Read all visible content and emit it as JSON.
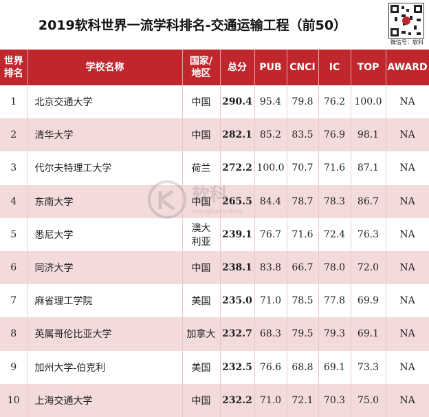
{
  "title": "2019软科世界一流学科排名-交通运输工程（前50）",
  "qr_caption": "微信号：软科",
  "watermark": {
    "text": "软科",
    "subtext": "shanghairanking"
  },
  "columns": [
    "世界\n排名",
    "学校名称",
    "国家/\n地区",
    "总分",
    "PUB",
    "CNCI",
    "IC",
    "TOP",
    "AWARD"
  ],
  "rows": [
    {
      "rank": "1",
      "name": "北京交通大学",
      "region": "中国",
      "total": "290.4",
      "pub": "95.4",
      "cnci": "79.8",
      "ic": "76.2",
      "top": "100.0",
      "award": "NA"
    },
    {
      "rank": "2",
      "name": "清华大学",
      "region": "中国",
      "total": "282.1",
      "pub": "85.2",
      "cnci": "83.5",
      "ic": "76.9",
      "top": "98.1",
      "award": "NA"
    },
    {
      "rank": "3",
      "name": "代尔夫特理工大学",
      "region": "荷兰",
      "total": "272.2",
      "pub": "100.0",
      "cnci": "70.7",
      "ic": "71.6",
      "top": "87.1",
      "award": "NA"
    },
    {
      "rank": "4",
      "name": "东南大学",
      "region": "中国",
      "total": "265.5",
      "pub": "84.4",
      "cnci": "78.7",
      "ic": "78.3",
      "top": "86.7",
      "award": "NA"
    },
    {
      "rank": "5",
      "name": "悉尼大学",
      "region": "澳大\n利亚",
      "total": "239.1",
      "pub": "76.7",
      "cnci": "71.6",
      "ic": "72.4",
      "top": "76.3",
      "award": "NA"
    },
    {
      "rank": "6",
      "name": "同济大学",
      "region": "中国",
      "total": "238.1",
      "pub": "83.8",
      "cnci": "66.7",
      "ic": "78.0",
      "top": "72.0",
      "award": "NA"
    },
    {
      "rank": "7",
      "name": "麻省理工学院",
      "region": "美国",
      "total": "235.0",
      "pub": "71.0",
      "cnci": "78.5",
      "ic": "77.8",
      "top": "69.9",
      "award": "NA"
    },
    {
      "rank": "8",
      "name": "英属哥伦比亚大学",
      "region": "加拿大",
      "total": "232.7",
      "pub": "68.3",
      "cnci": "79.5",
      "ic": "79.3",
      "top": "69.1",
      "award": "NA"
    },
    {
      "rank": "9",
      "name": "加州大学-伯克利",
      "region": "美国",
      "total": "232.5",
      "pub": "76.6",
      "cnci": "68.8",
      "ic": "69.1",
      "top": "73.3",
      "award": "NA"
    },
    {
      "rank": "10",
      "name": "上海交通大学",
      "region": "中国",
      "total": "232.2",
      "pub": "71.0",
      "cnci": "72.1",
      "ic": "70.3",
      "top": "75.0",
      "award": "NA"
    }
  ]
}
